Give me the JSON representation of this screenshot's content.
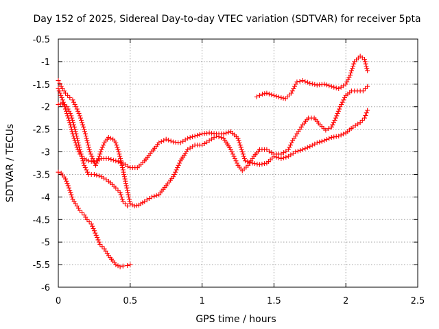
{
  "chart_data": {
    "type": "scatter",
    "title": "Day 152 of 2025, Sidereal Day-to-day VTEC variation (SDTVAR) for receiver 5pta",
    "xlabel": "GPS time / hours",
    "ylabel": "SDTVAR / TECUs",
    "xlim": [
      0,
      2.5
    ],
    "ylim": [
      -6,
      -0.5
    ],
    "xticks": [
      0,
      0.5,
      1,
      1.5,
      2,
      2.5
    ],
    "xtick_labels": [
      "0",
      "0.5",
      "1",
      "1.5",
      "2",
      "2.5"
    ],
    "yticks": [
      -0.5,
      -1,
      -1.5,
      -2,
      -2.5,
      -3,
      -3.5,
      -4,
      -4.5,
      -5,
      -5.5,
      -6
    ],
    "ytick_labels": [
      "-0.5",
      "-1",
      "-1.5",
      "-2",
      "-2.5",
      "-3",
      "-3.5",
      "-4",
      "-4.5",
      "-5",
      "-5.5",
      "-6"
    ],
    "grid": true,
    "marker": "+",
    "marker_color": "#ff0000",
    "series": [
      {
        "points": [
          [
            0.0,
            -3.45
          ],
          [
            0.02,
            -3.47
          ],
          [
            0.05,
            -3.6
          ],
          [
            0.08,
            -3.85
          ],
          [
            0.1,
            -4.05
          ],
          [
            0.13,
            -4.2
          ],
          [
            0.15,
            -4.3
          ],
          [
            0.18,
            -4.4
          ],
          [
            0.2,
            -4.5
          ],
          [
            0.23,
            -4.6
          ],
          [
            0.25,
            -4.75
          ],
          [
            0.27,
            -4.9
          ],
          [
            0.29,
            -5.05
          ],
          [
            0.32,
            -5.15
          ],
          [
            0.35,
            -5.3
          ],
          [
            0.38,
            -5.42
          ],
          [
            0.4,
            -5.5
          ],
          [
            0.43,
            -5.55
          ],
          [
            0.45,
            -5.53
          ],
          [
            0.48,
            -5.52
          ],
          [
            0.5,
            -5.5
          ]
        ]
      },
      {
        "points": [
          [
            0.0,
            -1.42
          ],
          [
            0.02,
            -1.55
          ],
          [
            0.05,
            -1.7
          ],
          [
            0.08,
            -1.8
          ],
          [
            0.1,
            -1.85
          ],
          [
            0.13,
            -2.05
          ],
          [
            0.15,
            -2.2
          ],
          [
            0.18,
            -2.5
          ],
          [
            0.2,
            -2.75
          ],
          [
            0.22,
            -3.0
          ],
          [
            0.24,
            -3.15
          ],
          [
            0.26,
            -3.3
          ],
          [
            0.28,
            -3.15
          ],
          [
            0.3,
            -2.95
          ],
          [
            0.32,
            -2.8
          ],
          [
            0.35,
            -2.68
          ],
          [
            0.38,
            -2.72
          ],
          [
            0.4,
            -2.8
          ],
          [
            0.42,
            -3.0
          ],
          [
            0.44,
            -3.25
          ],
          [
            0.47,
            -3.7
          ],
          [
            0.5,
            -4.15
          ],
          [
            0.53,
            -4.2
          ],
          [
            0.56,
            -4.18
          ],
          [
            0.6,
            -4.1
          ],
          [
            0.65,
            -4.0
          ],
          [
            0.7,
            -3.95
          ],
          [
            0.75,
            -3.75
          ],
          [
            0.8,
            -3.55
          ],
          [
            0.85,
            -3.2
          ],
          [
            0.9,
            -2.95
          ],
          [
            0.95,
            -2.85
          ],
          [
            1.0,
            -2.85
          ],
          [
            1.05,
            -2.75
          ],
          [
            1.1,
            -2.65
          ],
          [
            1.15,
            -2.7
          ],
          [
            1.2,
            -2.95
          ],
          [
            1.25,
            -3.3
          ],
          [
            1.28,
            -3.42
          ],
          [
            1.32,
            -3.3
          ],
          [
            1.36,
            -3.1
          ],
          [
            1.4,
            -2.95
          ],
          [
            1.45,
            -2.95
          ],
          [
            1.5,
            -3.05
          ],
          [
            1.55,
            -3.05
          ],
          [
            1.6,
            -2.95
          ],
          [
            1.63,
            -2.75
          ],
          [
            1.66,
            -2.6
          ],
          [
            1.7,
            -2.4
          ],
          [
            1.74,
            -2.25
          ],
          [
            1.78,
            -2.25
          ],
          [
            1.82,
            -2.4
          ],
          [
            1.86,
            -2.52
          ],
          [
            1.9,
            -2.45
          ],
          [
            1.93,
            -2.25
          ],
          [
            1.96,
            -2.0
          ],
          [
            2.0,
            -1.75
          ],
          [
            2.04,
            -1.65
          ],
          [
            2.08,
            -1.65
          ],
          [
            2.12,
            -1.65
          ],
          [
            2.15,
            -1.55
          ]
        ]
      },
      {
        "points": [
          [
            0.0,
            -1.6
          ],
          [
            0.03,
            -1.85
          ],
          [
            0.05,
            -2.05
          ],
          [
            0.08,
            -2.35
          ],
          [
            0.1,
            -2.6
          ],
          [
            0.13,
            -2.9
          ],
          [
            0.15,
            -3.05
          ],
          [
            0.18,
            -3.15
          ],
          [
            0.21,
            -3.2
          ],
          [
            0.25,
            -3.22
          ],
          [
            0.3,
            -3.15
          ],
          [
            0.35,
            -3.15
          ],
          [
            0.4,
            -3.2
          ],
          [
            0.45,
            -3.25
          ],
          [
            0.5,
            -3.35
          ],
          [
            0.55,
            -3.35
          ],
          [
            0.6,
            -3.2
          ],
          [
            0.65,
            -3.0
          ],
          [
            0.7,
            -2.8
          ],
          [
            0.75,
            -2.72
          ],
          [
            0.8,
            -2.78
          ],
          [
            0.85,
            -2.8
          ],
          [
            0.9,
            -2.7
          ],
          [
            0.95,
            -2.65
          ],
          [
            1.0,
            -2.6
          ],
          [
            1.05,
            -2.58
          ],
          [
            1.1,
            -2.6
          ],
          [
            1.15,
            -2.6
          ],
          [
            1.2,
            -2.55
          ],
          [
            1.25,
            -2.7
          ],
          [
            1.3,
            -3.2
          ],
          [
            1.35,
            -3.25
          ],
          [
            1.4,
            -3.28
          ],
          [
            1.45,
            -3.25
          ],
          [
            1.5,
            -3.1
          ],
          [
            1.55,
            -3.15
          ],
          [
            1.6,
            -3.1
          ],
          [
            1.65,
            -3.0
          ],
          [
            1.7,
            -2.95
          ],
          [
            1.75,
            -2.88
          ],
          [
            1.8,
            -2.8
          ],
          [
            1.85,
            -2.75
          ],
          [
            1.9,
            -2.68
          ],
          [
            1.95,
            -2.65
          ],
          [
            2.0,
            -2.58
          ],
          [
            2.05,
            -2.45
          ],
          [
            2.1,
            -2.35
          ],
          [
            2.13,
            -2.25
          ],
          [
            2.15,
            -2.08
          ]
        ]
      },
      {
        "points": [
          [
            0.0,
            -1.95
          ],
          [
            0.03,
            -1.93
          ],
          [
            0.06,
            -2.0
          ],
          [
            0.09,
            -2.2
          ],
          [
            0.12,
            -2.55
          ],
          [
            0.15,
            -2.95
          ],
          [
            0.18,
            -3.3
          ],
          [
            0.21,
            -3.5
          ],
          [
            0.25,
            -3.5
          ],
          [
            0.3,
            -3.55
          ],
          [
            0.35,
            -3.65
          ],
          [
            0.4,
            -3.8
          ],
          [
            0.43,
            -3.9
          ],
          [
            0.45,
            -4.1
          ],
          [
            0.48,
            -4.2
          ]
        ]
      },
      {
        "points": [
          [
            1.38,
            -1.78
          ],
          [
            1.42,
            -1.72
          ],
          [
            1.45,
            -1.7
          ],
          [
            1.5,
            -1.75
          ],
          [
            1.55,
            -1.8
          ],
          [
            1.58,
            -1.82
          ],
          [
            1.62,
            -1.7
          ],
          [
            1.66,
            -1.45
          ],
          [
            1.7,
            -1.42
          ],
          [
            1.75,
            -1.48
          ],
          [
            1.8,
            -1.52
          ],
          [
            1.85,
            -1.5
          ],
          [
            1.9,
            -1.55
          ],
          [
            1.95,
            -1.6
          ],
          [
            2.0,
            -1.5
          ],
          [
            2.03,
            -1.3
          ],
          [
            2.06,
            -1.0
          ],
          [
            2.1,
            -0.88
          ],
          [
            2.13,
            -0.95
          ],
          [
            2.15,
            -1.2
          ]
        ]
      }
    ]
  }
}
